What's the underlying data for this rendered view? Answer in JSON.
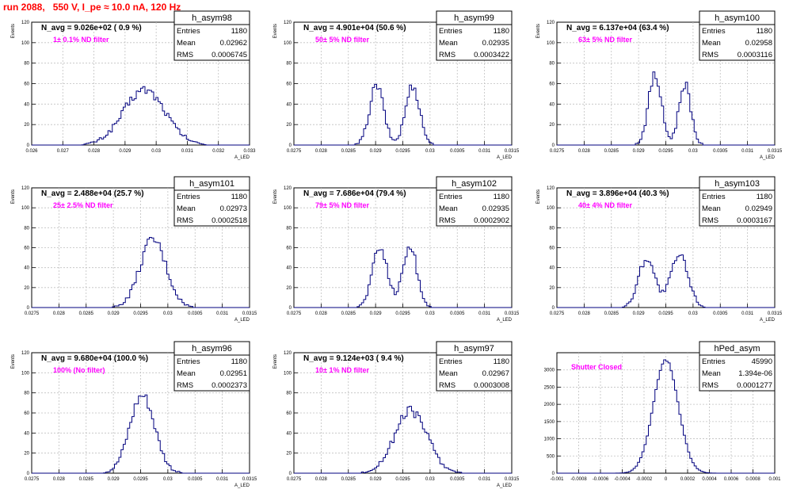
{
  "page_title": "run 2088,   550 V, I_pe ≈ 10.0 nA, 120 Hz",
  "colors": {
    "histogram": "#00007f",
    "grid": "#c0c0c0",
    "label": "#ff00ff",
    "title": "#ff0000"
  },
  "stats_labels": {
    "entries": "Entries",
    "mean": "Mean",
    "rms": "RMS"
  },
  "chart_data": [
    {
      "type": "histogram",
      "name": "h_asym98",
      "stats": {
        "entries": "1180",
        "mean": "0.02962",
        "rms": "0.0006745"
      },
      "navg": "N_avg = 9.026e+02 ( 0.9 %)",
      "label": "1± 0.1% ND filter",
      "ylabel": "Events",
      "xlabel": "A_LED",
      "xlim": [
        0.026,
        0.033
      ],
      "ylim": [
        0,
        120
      ],
      "xticks": [
        "0.026",
        "0.027",
        "0.028",
        "0.029",
        "0.03",
        "0.031",
        "0.032",
        "0.033"
      ],
      "yticks": [
        "0",
        "20",
        "40",
        "60",
        "80",
        "100",
        "120"
      ],
      "grid": true,
      "curve": {
        "components": [
          {
            "mu": 0.02962,
            "sigma": 0.00067,
            "amp": 54
          }
        ]
      }
    },
    {
      "type": "histogram",
      "name": "h_asym99",
      "stats": {
        "entries": "1180",
        "mean": "0.02935",
        "rms": "0.0003422"
      },
      "navg": "N_avg = 4.901e+04 (50.6 %)",
      "label": "50± 5% ND filter",
      "ylabel": "Events",
      "xlabel": "A_LED",
      "xlim": [
        0.0275,
        0.0315
      ],
      "ylim": [
        0,
        120
      ],
      "xticks": [
        "0.0275",
        "0.028",
        "0.0285",
        "0.029",
        "0.0295",
        "0.03",
        "0.0305",
        "0.031",
        "0.0315"
      ],
      "yticks": [
        "0",
        "20",
        "40",
        "60",
        "80",
        "100",
        "120"
      ],
      "grid": true,
      "curve": {
        "components": [
          {
            "mu": 0.02902,
            "sigma": 0.00013,
            "amp": 58
          },
          {
            "mu": 0.02968,
            "sigma": 0.00013,
            "amp": 58
          }
        ]
      }
    },
    {
      "type": "histogram",
      "name": "h_asym100",
      "stats": {
        "entries": "1180",
        "mean": "0.02958",
        "rms": "0.0003116"
      },
      "navg": "N_avg = 6.137e+04 (63.4 %)",
      "label": "63± 5% ND filter",
      "ylabel": "Events",
      "xlabel": "A_LED",
      "xlim": [
        0.0275,
        0.0315
      ],
      "ylim": [
        0,
        120
      ],
      "xticks": [
        "0.0275",
        "0.028",
        "0.0285",
        "0.029",
        "0.0295",
        "0.03",
        "0.0305",
        "0.031",
        "0.0315"
      ],
      "yticks": [
        "0",
        "20",
        "40",
        "60",
        "80",
        "100",
        "120"
      ],
      "grid": true,
      "curve": {
        "components": [
          {
            "mu": 0.0293,
            "sigma": 0.00012,
            "amp": 68
          },
          {
            "mu": 0.02985,
            "sigma": 0.00011,
            "amp": 60
          }
        ]
      }
    },
    {
      "type": "histogram",
      "name": "h_asym101",
      "stats": {
        "entries": "1180",
        "mean": "0.02973",
        "rms": "0.0002518"
      },
      "navg": "N_avg = 2.488e+04 (25.7 %)",
      "label": "25± 2.5% ND filter",
      "ylabel": "Events",
      "xlabel": "A_LED",
      "xlim": [
        0.0275,
        0.0315
      ],
      "ylim": [
        0,
        120
      ],
      "xticks": [
        "0.0275",
        "0.028",
        "0.0285",
        "0.029",
        "0.0295",
        "0.03",
        "0.0305",
        "0.031",
        "0.0315"
      ],
      "yticks": [
        "0",
        "20",
        "40",
        "60",
        "80",
        "100",
        "120"
      ],
      "grid": true,
      "curve": {
        "components": [
          {
            "mu": 0.02973,
            "sigma": 0.00024,
            "amp": 68
          }
        ]
      }
    },
    {
      "type": "histogram",
      "name": "h_asym102",
      "stats": {
        "entries": "1180",
        "mean": "0.02935",
        "rms": "0.0002902"
      },
      "navg": "N_avg = 7.686e+04 (79.4 %)",
      "label": "79± 5% ND filter",
      "ylabel": "Events",
      "xlabel": "A_LED",
      "xlim": [
        0.0275,
        0.0315
      ],
      "ylim": [
        0,
        120
      ],
      "xticks": [
        "0.0275",
        "0.028",
        "0.0285",
        "0.029",
        "0.0295",
        "0.03",
        "0.0305",
        "0.031",
        "0.0315"
      ],
      "yticks": [
        "0",
        "20",
        "40",
        "60",
        "80",
        "100",
        "120"
      ],
      "grid": true,
      "curve": {
        "components": [
          {
            "mu": 0.02908,
            "sigma": 0.00014,
            "amp": 60
          },
          {
            "mu": 0.02963,
            "sigma": 0.00013,
            "amp": 62
          }
        ]
      }
    },
    {
      "type": "histogram",
      "name": "h_asym103",
      "stats": {
        "entries": "1180",
        "mean": "0.02949",
        "rms": "0.0003167"
      },
      "navg": "N_avg = 3.896e+04 (40.3 %)",
      "label": "40± 4% ND filter",
      "ylabel": "Events",
      "xlabel": "A_LED",
      "xlim": [
        0.0275,
        0.0315
      ],
      "ylim": [
        0,
        120
      ],
      "xticks": [
        "0.0275",
        "0.028",
        "0.0285",
        "0.029",
        "0.0295",
        "0.03",
        "0.0305",
        "0.031",
        "0.0315"
      ],
      "yticks": [
        "0",
        "20",
        "40",
        "60",
        "80",
        "100",
        "120"
      ],
      "grid": true,
      "curve": {
        "components": [
          {
            "mu": 0.02915,
            "sigma": 0.00015,
            "amp": 50
          },
          {
            "mu": 0.02975,
            "sigma": 0.00016,
            "amp": 52
          }
        ]
      }
    },
    {
      "type": "histogram",
      "name": "h_asym96",
      "stats": {
        "entries": "1180",
        "mean": "0.02951",
        "rms": "0.0002373"
      },
      "navg": "N_avg = 9.680e+04 (100.0 %)",
      "label": "100% (No filter)",
      "ylabel": "Events",
      "xlabel": "A_LED",
      "xlim": [
        0.0275,
        0.0315
      ],
      "ylim": [
        0,
        120
      ],
      "xticks": [
        "0.0275",
        "0.028",
        "0.0285",
        "0.029",
        "0.0295",
        "0.03",
        "0.0305",
        "0.031",
        "0.0315"
      ],
      "yticks": [
        "0",
        "20",
        "40",
        "60",
        "80",
        "100",
        "120"
      ],
      "grid": true,
      "curve": {
        "components": [
          {
            "mu": 0.02953,
            "sigma": 0.00023,
            "amp": 78
          }
        ]
      }
    },
    {
      "type": "histogram",
      "name": "h_asym97",
      "stats": {
        "entries": "1180",
        "mean": "0.02967",
        "rms": "0.0003008"
      },
      "navg": "N_avg = 9.124e+03 ( 9.4 %)",
      "label": "10± 1% ND filter",
      "ylabel": "Events",
      "xlabel": "A_LED",
      "xlim": [
        0.0275,
        0.0315
      ],
      "ylim": [
        0,
        120
      ],
      "xticks": [
        "0.0275",
        "0.028",
        "0.0285",
        "0.029",
        "0.0295",
        "0.03",
        "0.0305",
        "0.031",
        "0.0315"
      ],
      "yticks": [
        "0",
        "20",
        "40",
        "60",
        "80",
        "100",
        "120"
      ],
      "grid": true,
      "curve": {
        "components": [
          {
            "mu": 0.02965,
            "sigma": 0.0003,
            "amp": 62
          }
        ]
      }
    },
    {
      "type": "histogram",
      "name": "hPed_asym",
      "stats": {
        "entries": "45990",
        "mean": "1.394e-06",
        "rms": "0.0001277"
      },
      "navg": "",
      "label": "Shutter Closed",
      "ylabel": "",
      "xlabel": "",
      "xlim": [
        -0.001,
        0.001
      ],
      "ylim": [
        0,
        3500
      ],
      "xticks": [
        "-0.001",
        "-0.0008",
        "-0.0006",
        "-0.0004",
        "-0.0002",
        "0",
        "0.0002",
        "0.0004",
        "0.0006",
        "0.0008",
        "0.001"
      ],
      "yticks": [
        "0",
        "500",
        "1000",
        "1500",
        "2000",
        "2500",
        "3000"
      ],
      "grid": true,
      "curve": {
        "components": [
          {
            "mu": 0.0,
            "sigma": 0.000115,
            "amp": 3280
          }
        ]
      }
    }
  ]
}
